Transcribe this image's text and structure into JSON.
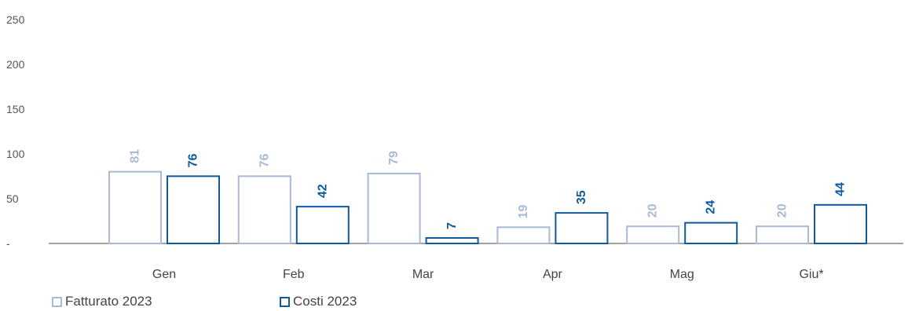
{
  "chart_data": {
    "type": "bar",
    "categories": [
      "Gen",
      "Feb",
      "Mar",
      "Apr",
      "Mag",
      "Giu*"
    ],
    "series": [
      {
        "name": "Fatturato 2023",
        "values": [
          81,
          76,
          79,
          19,
          20,
          20
        ],
        "color": "#a9b9d6"
      },
      {
        "name": "Costi 2023",
        "values": [
          76,
          42,
          7,
          35,
          24,
          44
        ],
        "color": "#0f5a9c"
      }
    ],
    "yticks": [
      "-",
      "50",
      "100",
      "150",
      "200",
      "250"
    ],
    "ylim": [
      0,
      250
    ],
    "grid": false,
    "legend_position": "bottom-left",
    "data_labels": "rotated"
  }
}
